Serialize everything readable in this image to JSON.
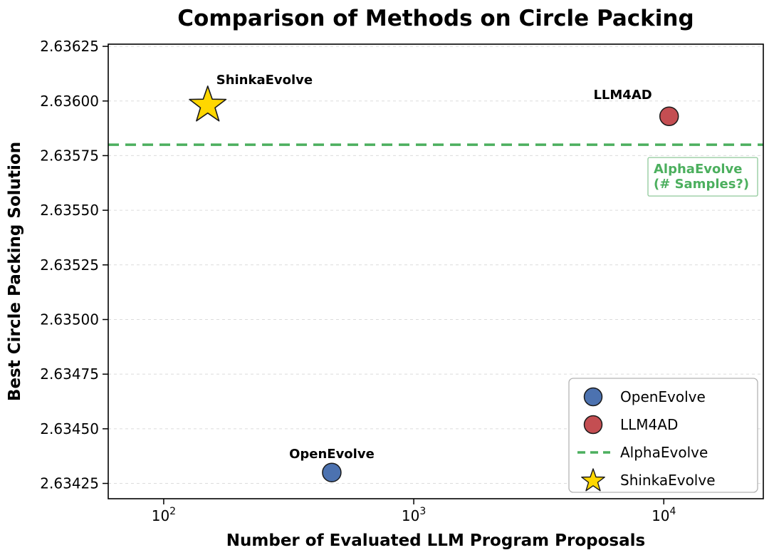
{
  "chart_data": {
    "type": "scatter",
    "title": "Comparison of Methods on Circle Packing",
    "xlabel": "Number of Evaluated LLM Program Proposals",
    "ylabel": "Best Circle Packing Solution",
    "x_scale": "log",
    "xlim": [
      60,
      25000
    ],
    "ylim": [
      2.63418,
      2.63626
    ],
    "grid": "horizontal dashed",
    "x_ticks": [
      {
        "value": 100,
        "label": "10^2"
      },
      {
        "value": 1000,
        "label": "10^3"
      },
      {
        "value": 10000,
        "label": "10^4"
      }
    ],
    "y_ticks": [
      {
        "value": 2.63425,
        "label": "2.63425"
      },
      {
        "value": 2.6345,
        "label": "2.63450"
      },
      {
        "value": 2.63475,
        "label": "2.63475"
      },
      {
        "value": 2.635,
        "label": "2.63500"
      },
      {
        "value": 2.63525,
        "label": "2.63525"
      },
      {
        "value": 2.6355,
        "label": "2.63550"
      },
      {
        "value": 2.63575,
        "label": "2.63575"
      },
      {
        "value": 2.636,
        "label": "2.63600"
      },
      {
        "value": 2.63625,
        "label": "2.63625"
      }
    ],
    "series": [
      {
        "name": "OpenEvolve",
        "marker": "circle",
        "color": "#4C72B0",
        "edge": "#1a1a1a",
        "x": 470,
        "y": 2.6343,
        "label": {
          "text": "OpenEvolve",
          "anchor": "middle",
          "dx": 0,
          "dy": -20
        }
      },
      {
        "name": "LLM4AD",
        "marker": "circle",
        "color": "#C44E52",
        "edge": "#1a1a1a",
        "x": 10500,
        "y": 2.63593,
        "label": {
          "text": "LLM4AD",
          "anchor": "end",
          "dx": -24,
          "dy": -24
        }
      },
      {
        "name": "ShinkaEvolve",
        "marker": "star",
        "color": "#FFD700",
        "edge": "#1a1a1a",
        "x": 150,
        "y": 2.63598,
        "label": {
          "text": "ShinkaEvolve",
          "anchor": "start",
          "dx": 12,
          "dy": -30
        }
      }
    ],
    "reference_line": {
      "name": "AlphaEvolve",
      "y": 2.6358,
      "color": "#4CAF5E",
      "style": "dashed",
      "callout_lines": [
        "AlphaEvolve",
        "(# Samples?)"
      ]
    },
    "legend": {
      "position": "lower right",
      "entries": [
        {
          "label": "OpenEvolve",
          "marker": "circle",
          "color": "#4C72B0"
        },
        {
          "label": "LLM4AD",
          "marker": "circle",
          "color": "#C44E52"
        },
        {
          "label": "AlphaEvolve",
          "marker": "dashed-line",
          "color": "#4CAF5E"
        },
        {
          "label": "ShinkaEvolve",
          "marker": "star",
          "color": "#FFD700"
        }
      ]
    }
  }
}
